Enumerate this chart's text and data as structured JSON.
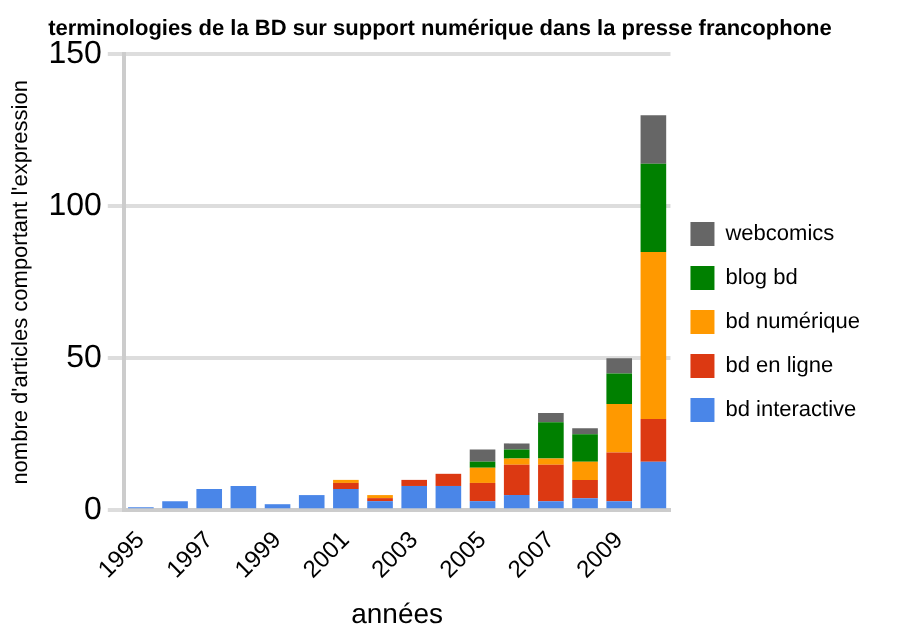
{
  "chart_data": {
    "type": "bar",
    "stacked": true,
    "title": "terminologies de la BD sur support numérique dans la presse francophone",
    "xlabel": "années",
    "ylabel": "nombre d'articles comportant l'expression",
    "categories": [
      "1995",
      null,
      "1997",
      null,
      "1999",
      null,
      "2001",
      null,
      "2003",
      null,
      "2005",
      null,
      "2007",
      null,
      "2009",
      null
    ],
    "series": [
      {
        "name": "bd interactive",
        "color": "#4a86e8",
        "values": [
          1,
          3,
          7,
          8,
          2,
          5,
          7,
          3,
          8,
          8,
          3,
          5,
          3,
          4,
          3,
          16
        ]
      },
      {
        "name": "bd en ligne",
        "color": "#dc3912",
        "values": [
          0,
          0,
          0,
          0,
          0,
          0,
          2,
          1,
          2,
          4,
          6,
          10,
          12,
          6,
          16,
          14
        ]
      },
      {
        "name": "bd numérique",
        "color": "#ff9900",
        "values": [
          0,
          0,
          0,
          0,
          0,
          0,
          1,
          1,
          0,
          0,
          5,
          2,
          2,
          6,
          16,
          55
        ]
      },
      {
        "name": "blog bd",
        "color": "#008000",
        "values": [
          0,
          0,
          0,
          0,
          0,
          0,
          0,
          0,
          0,
          0,
          2,
          3,
          12,
          9,
          10,
          29
        ]
      },
      {
        "name": "webcomics",
        "color": "#666666",
        "values": [
          0,
          0,
          0,
          0,
          0,
          0,
          0,
          0,
          0,
          0,
          4,
          2,
          3,
          2,
          5,
          16
        ]
      }
    ],
    "ylim": [
      0,
      150
    ],
    "yticks": [
      0,
      50,
      100,
      150
    ],
    "grid": "y",
    "legend": "right"
  }
}
